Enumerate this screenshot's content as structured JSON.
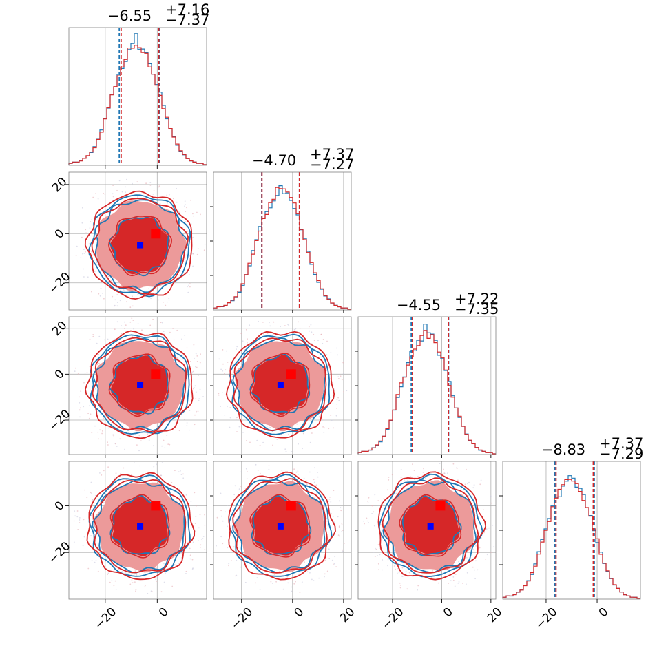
{
  "chart_data": {
    "type": "corner",
    "parameters": 4,
    "titles": [
      {
        "value": "−6.55",
        "upper": "+7.16",
        "lower": "−7.37"
      },
      {
        "value": "−4.70",
        "upper": "+7.37",
        "lower": "−7.27"
      },
      {
        "value": "−4.55",
        "upper": "+7.22",
        "lower": "−7.35"
      },
      {
        "value": "−8.83",
        "upper": "+7.37",
        "lower": "−7.29"
      }
    ],
    "diag_ranges": [
      [
        -34,
        19
      ],
      [
        -31,
        23
      ],
      [
        -34,
        22
      ],
      [
        -37,
        17
      ]
    ],
    "row_ranges": [
      null,
      [
        -31,
        25
      ],
      [
        -35,
        25
      ],
      [
        -40,
        19
      ]
    ],
    "x_ticks": [
      [
        -20,
        0
      ],
      [
        -20,
        0,
        20
      ],
      [
        -20,
        0,
        20
      ],
      [
        -20,
        0
      ]
    ],
    "x_tick_labels": [
      [
        "−20",
        "0"
      ],
      [
        "−20",
        "0",
        "20"
      ],
      [
        "−20",
        "0",
        "20"
      ],
      [
        "−20",
        "0"
      ]
    ],
    "y_ticks": [
      null,
      [
        -20,
        0,
        20
      ],
      [
        -20,
        0,
        20
      ],
      [
        -20,
        0
      ]
    ],
    "y_tick_labels": [
      null,
      [
        "−20",
        "0",
        "20"
      ],
      [
        "−20",
        "0",
        "20"
      ],
      [
        "−20",
        "0"
      ]
    ],
    "truth_values": [
      0,
      0,
      0,
      0
    ],
    "medians": [
      -6.55,
      -4.7,
      -4.55,
      -8.83
    ],
    "series": [
      {
        "color": "#1f77b4",
        "quantile_lines": [
          [
            -14.6,
            0.9
          ],
          [
            -12.1,
            2.7
          ],
          [
            -12.4,
            2.8
          ],
          [
            -16.6,
            -1.1
          ]
        ]
      },
      {
        "color": "#d62728",
        "quantile_lines": [
          [
            -13.9,
            0.6
          ],
          [
            -12.0,
            2.7
          ],
          [
            -11.9,
            2.7
          ],
          [
            -16.1,
            -1.5
          ]
        ]
      }
    ],
    "marker_colors": {
      "truth": "#ff0000",
      "median": "#0000ff"
    },
    "fill_colors": {
      "inner": "#d62728",
      "outer": "#ec9a9a"
    },
    "histogram_profile": [
      0.01,
      0.02,
      0.02,
      0.03,
      0.05,
      0.07,
      0.1,
      0.14,
      0.2,
      0.27,
      0.36,
      0.46,
      0.55,
      0.64,
      0.72,
      0.79,
      0.85,
      0.9,
      0.94,
      1.0,
      0.96,
      0.93,
      0.88,
      0.82,
      0.74,
      0.65,
      0.56,
      0.46,
      0.37,
      0.29,
      0.22,
      0.16,
      0.11,
      0.08,
      0.05,
      0.03,
      0.02,
      0.01,
      0.01,
      0.0
    ],
    "grid": true
  }
}
